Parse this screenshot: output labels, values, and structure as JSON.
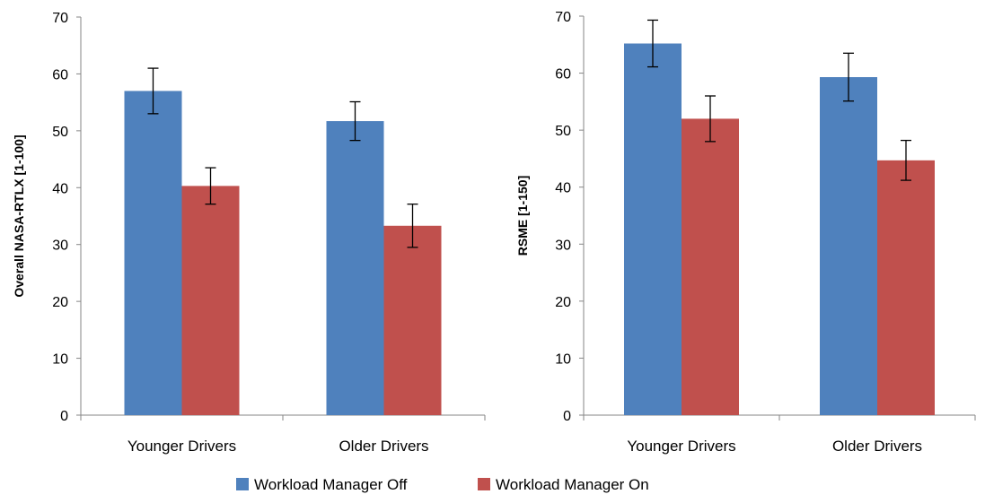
{
  "legend": {
    "items": [
      {
        "label": "Workload Manager  Off",
        "color": "#4F81BD"
      },
      {
        "label": "Workload Manager  On",
        "color": "#C0504D"
      }
    ]
  },
  "chart_data": [
    {
      "type": "bar",
      "categories": [
        "Younger Drivers",
        "Older Drivers"
      ],
      "series": [
        {
          "name": "Workload Manager  Off",
          "color": "#4F81BD",
          "values": [
            57.0,
            51.7
          ],
          "error": [
            4.0,
            3.4
          ]
        },
        {
          "name": "Workload Manager  On",
          "color": "#C0504D",
          "values": [
            40.3,
            33.3
          ],
          "error": [
            3.2,
            3.8
          ]
        }
      ],
      "title": "",
      "xlabel": "",
      "ylabel": "Overall NASA-RTLX [1-100]",
      "ylim": [
        0,
        70
      ],
      "yticks": [
        0,
        10,
        20,
        30,
        40,
        50,
        60,
        70
      ],
      "grid": false,
      "legend_position": "bottom"
    },
    {
      "type": "bar",
      "categories": [
        "Younger Drivers",
        "Older Drivers"
      ],
      "series": [
        {
          "name": "Workload Manager  Off",
          "color": "#4F81BD",
          "values": [
            65.2,
            59.3
          ],
          "error": [
            4.1,
            4.2
          ]
        },
        {
          "name": "Workload Manager  On",
          "color": "#C0504D",
          "values": [
            52.0,
            44.7
          ],
          "error": [
            4.0,
            3.5
          ]
        }
      ],
      "title": "",
      "xlabel": "",
      "ylabel": "RSME [1-150]",
      "ylim": [
        0,
        70
      ],
      "yticks": [
        0,
        10,
        20,
        30,
        40,
        50,
        60,
        70
      ],
      "grid": false,
      "legend_position": "bottom"
    }
  ]
}
